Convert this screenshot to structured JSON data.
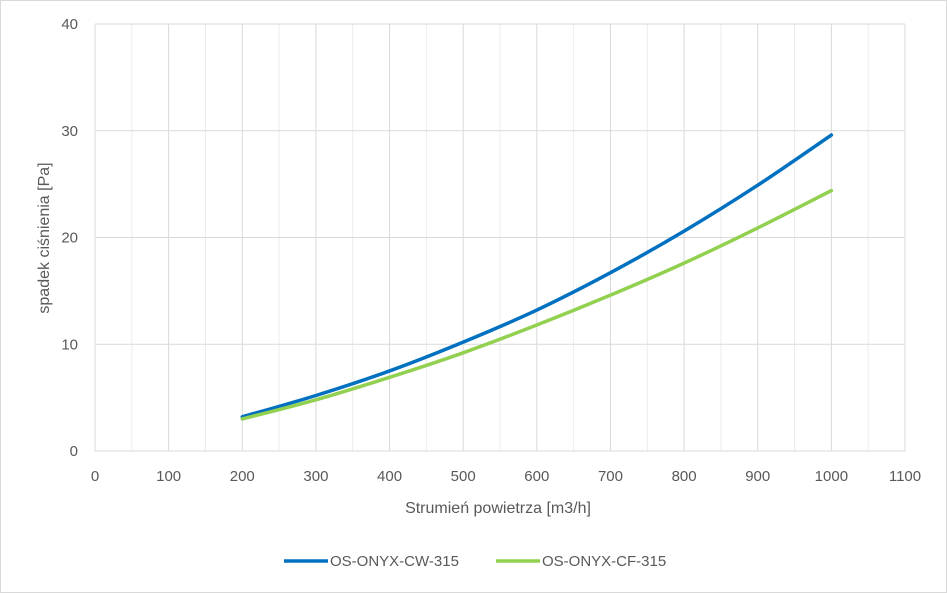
{
  "chart_data": {
    "type": "line",
    "title": "",
    "xlabel": "Strumień powietrza [m3/h]",
    "ylabel": "spadek ciśnienia [Pa]",
    "xlim": [
      0,
      1100
    ],
    "ylim": [
      0,
      40
    ],
    "x_ticks": [
      "0",
      "100",
      "200",
      "300",
      "400",
      "500",
      "600",
      "700",
      "800",
      "900",
      "1000",
      "1100"
    ],
    "y_ticks": [
      "0",
      "10",
      "20",
      "30",
      "40"
    ],
    "x_tick_values": [
      0,
      100,
      200,
      300,
      400,
      500,
      600,
      700,
      800,
      900,
      1000,
      1100
    ],
    "y_tick_values": [
      0,
      10,
      20,
      30,
      40
    ],
    "x_minor_grid_step": 50,
    "grid": true,
    "legend_position": "bottom",
    "series": [
      {
        "name": "OS-ONYX-CW-315",
        "color": "#0070c0",
        "x": [
          200,
          300,
          400,
          500,
          600,
          700,
          800,
          900,
          1000
        ],
        "y": [
          3.2,
          5.2,
          7.5,
          10.2,
          13.2,
          16.7,
          20.6,
          24.9,
          29.6
        ]
      },
      {
        "name": "OS-ONYX-CF-315",
        "color": "#92d050",
        "x": [
          200,
          300,
          400,
          500,
          600,
          700,
          800,
          900,
          1000
        ],
        "y": [
          3.0,
          4.8,
          6.9,
          9.2,
          11.8,
          14.6,
          17.6,
          20.9,
          24.4
        ]
      }
    ]
  }
}
